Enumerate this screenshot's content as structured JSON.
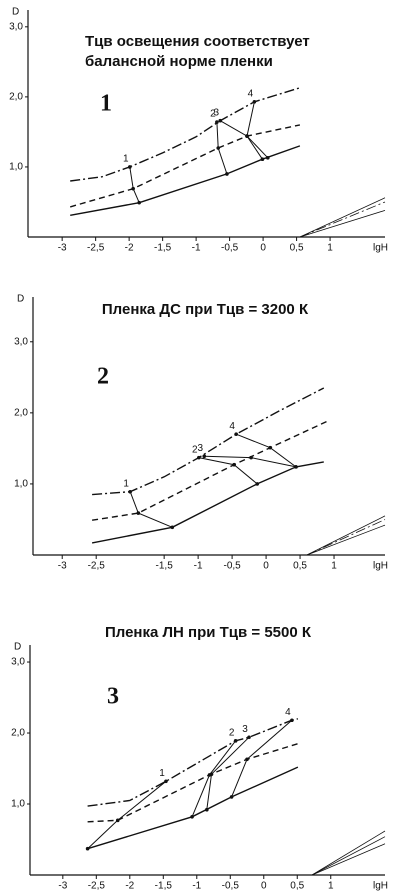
{
  "chart_data": [
    {
      "type": "line",
      "title": [
        "Tцв освещения соответствует",
        "балансной норме пленки"
      ],
      "panel_label": "1",
      "ylabel": "D",
      "xlabel": "lgH",
      "xlim": [
        -3.51,
        1.82
      ],
      "ylim": [
        0,
        3.24
      ],
      "xticks": [
        -3,
        {
          "value": -2.5,
          "label": "-2,5"
        },
        -2,
        {
          "value": -1.5,
          "label": "-1,5"
        },
        -1,
        {
          "value": -0.5,
          "label": "-0,5"
        },
        0,
        {
          "value": 0.5,
          "label": "0,5"
        },
        1
      ],
      "yticks": [
        {
          "value": 1,
          "label": "1,0"
        },
        {
          "value": 2,
          "label": "2,0"
        },
        {
          "value": 3,
          "label": "3,0"
        }
      ],
      "series": [
        {
          "style": "dashdot",
          "color": "#111",
          "width": 1.4,
          "x": [
            -2.88,
            -2.4,
            -1.99,
            -1.5,
            -1,
            -0.64,
            -0.13,
            0.55
          ],
          "values": [
            0.8,
            0.86,
            1.0,
            1.2,
            1.43,
            1.66,
            1.93,
            2.13
          ]
        },
        {
          "style": "dashed",
          "color": "#111",
          "width": 1.4,
          "x": [
            -2.88,
            -1.94,
            -0.67,
            -0.24,
            0.55
          ],
          "values": [
            0.43,
            0.69,
            1.27,
            1.44,
            1.6
          ]
        },
        {
          "style": "solid",
          "color": "#111",
          "width": 1.4,
          "x": [
            -2.88,
            -1.85,
            -0.54,
            -0.01,
            0.55
          ],
          "values": [
            0.31,
            0.49,
            0.9,
            1.11,
            1.3
          ]
        },
        {
          "style": "solid",
          "color": "#111",
          "width": 0.8,
          "x": [
            0.55,
            1.82
          ],
          "values": [
            0,
            0.56
          ]
        },
        {
          "style": "dashdot",
          "color": "#111",
          "width": 0.8,
          "x": [
            0.55,
            1.82
          ],
          "values": [
            0,
            0.5
          ]
        },
        {
          "style": "solid",
          "color": "#111",
          "width": 0.8,
          "x": [
            0.55,
            1.82
          ],
          "values": [
            0,
            0.38
          ]
        }
      ],
      "connectors": [
        {
          "label": "1",
          "x": [
            -1.99,
            -1.94,
            -1.85
          ],
          "y": [
            1.0,
            0.69,
            0.49
          ]
        },
        {
          "label": "2",
          "x": [
            -0.69,
            -0.67,
            -0.54
          ],
          "y": [
            1.64,
            1.27,
            0.9
          ]
        },
        {
          "label": "3",
          "x": [
            -0.64,
            -0.24,
            -0.01
          ],
          "y": [
            1.66,
            1.44,
            1.11
          ]
        },
        {
          "label": "4",
          "x": [
            -0.13,
            -0.24,
            0.07
          ],
          "y": [
            1.93,
            1.44,
            1.13
          ]
        }
      ]
    },
    {
      "type": "line",
      "title": [
        "Пленка ДС при Tцв = 3200 К"
      ],
      "panel_label": "2",
      "ylabel": "D",
      "xlabel": "lgH",
      "xlim": [
        -3.43,
        1.75
      ],
      "ylim": [
        0,
        3.63
      ],
      "xticks": [
        -3,
        {
          "value": -2.5,
          "label": "-2,5"
        },
        {
          "value": -1.5,
          "label": "-1,5"
        },
        -1,
        {
          "value": -0.5,
          "label": "-0,5"
        },
        0,
        {
          "value": 0.5,
          "label": "0,5"
        },
        1
      ],
      "yticks": [
        {
          "value": 1,
          "label": "1,0"
        },
        {
          "value": 2,
          "label": "2,0"
        },
        {
          "value": 3,
          "label": "3,0"
        }
      ],
      "series": [
        {
          "style": "dashdot",
          "color": "#111",
          "width": 1.4,
          "x": [
            -2.56,
            -2.0,
            -1.5,
            -0.99,
            -0.44,
            0.2,
            0.85
          ],
          "values": [
            0.85,
            0.89,
            1.1,
            1.37,
            1.7,
            2.03,
            2.35
          ]
        },
        {
          "style": "dashed",
          "color": "#111",
          "width": 1.4,
          "x": [
            -2.56,
            -1.88,
            -0.47,
            0.06,
            0.94
          ],
          "values": [
            0.49,
            0.59,
            1.27,
            1.51,
            1.9
          ]
        },
        {
          "style": "solid",
          "color": "#111",
          "width": 1.4,
          "x": [
            -2.56,
            -1.38,
            -0.13,
            0.44,
            0.85
          ],
          "values": [
            0.17,
            0.39,
            1.0,
            1.24,
            1.31
          ]
        },
        {
          "style": "solid",
          "color": "#111",
          "width": 0.8,
          "x": [
            0.6,
            1.75
          ],
          "values": [
            0,
            0.55
          ]
        },
        {
          "style": "dashdot",
          "color": "#111",
          "width": 0.8,
          "x": [
            0.6,
            1.75
          ],
          "values": [
            0,
            0.5
          ]
        },
        {
          "style": "solid",
          "color": "#111",
          "width": 0.8,
          "x": [
            0.6,
            1.75
          ],
          "values": [
            0,
            0.42
          ]
        }
      ],
      "connectors": [
        {
          "label": "1",
          "x": [
            -2.0,
            -1.88,
            -1.38
          ],
          "y": [
            0.89,
            0.59,
            0.39
          ]
        },
        {
          "label": "2",
          "x": [
            -0.99,
            -0.47,
            -0.13
          ],
          "y": [
            1.37,
            1.27,
            1.0
          ]
        },
        {
          "label": "3",
          "x": [
            -0.91,
            -0.22,
            0.44
          ],
          "y": [
            1.39,
            1.37,
            1.24
          ]
        },
        {
          "label": "4",
          "x": [
            -0.44,
            0.06,
            0.44
          ],
          "y": [
            1.7,
            1.51,
            1.24
          ]
        }
      ]
    },
    {
      "type": "line",
      "title": [
        "Пленка ЛН при Tцв = 5500 К"
      ],
      "panel_label": "3",
      "ylabel": "D",
      "xlabel": "lgH",
      "xlim": [
        -3.49,
        1.81
      ],
      "ylim": [
        0,
        3.24
      ],
      "xticks": [
        -3,
        {
          "value": -2.5,
          "label": "-2,5"
        },
        -2,
        {
          "value": -1.5,
          "label": "-1,5"
        },
        -1,
        {
          "value": -0.5,
          "label": "-0,5"
        },
        0,
        {
          "value": 0.5,
          "label": "0,5"
        },
        1
      ],
      "yticks": [
        {
          "value": 1,
          "label": "1,0"
        },
        {
          "value": 2,
          "label": "2,0"
        },
        {
          "value": 3,
          "label": "3,0"
        }
      ],
      "series": [
        {
          "style": "dashdot",
          "color": "#111",
          "width": 1.4,
          "x": [
            -2.63,
            -2.0,
            -1.46,
            -0.42,
            -0.22,
            0.42,
            0.51
          ],
          "values": [
            0.97,
            1.05,
            1.32,
            1.89,
            1.94,
            2.18,
            2.2
          ]
        },
        {
          "style": "dashed",
          "color": "#111",
          "width": 1.4,
          "x": [
            -2.63,
            -2.18,
            -0.81,
            -0.25,
            0.51
          ],
          "values": [
            0.75,
            0.77,
            1.41,
            1.63,
            1.85
          ]
        },
        {
          "style": "solid",
          "color": "#111",
          "width": 1.4,
          "x": [
            -2.63,
            -1.07,
            -0.48,
            0.51
          ],
          "values": [
            0.37,
            0.82,
            1.1,
            1.52
          ]
        },
        {
          "style": "solid",
          "color": "#111",
          "width": 0.8,
          "x": [
            0.72,
            1.81
          ],
          "values": [
            0,
            0.62
          ]
        },
        {
          "style": "solid",
          "color": "#111",
          "width": 0.8,
          "x": [
            0.72,
            1.81
          ],
          "values": [
            0,
            0.54
          ]
        },
        {
          "style": "solid",
          "color": "#111",
          "width": 0.8,
          "x": [
            0.72,
            1.81
          ],
          "values": [
            0,
            0.44
          ]
        }
      ],
      "connectors": [
        {
          "label": "1",
          "x": [
            -1.46,
            -2.18,
            -2.63
          ],
          "y": [
            1.32,
            0.77,
            0.37
          ]
        },
        {
          "label": "2",
          "x": [
            -0.42,
            -0.81,
            -1.07
          ],
          "y": [
            1.89,
            1.41,
            0.82
          ]
        },
        {
          "label": "3",
          "x": [
            -0.22,
            -0.78,
            -0.85
          ],
          "y": [
            1.94,
            1.42,
            0.92
          ]
        },
        {
          "label": "4",
          "x": [
            0.42,
            -0.25,
            -0.48
          ],
          "y": [
            2.18,
            1.63,
            1.1
          ]
        }
      ]
    }
  ]
}
